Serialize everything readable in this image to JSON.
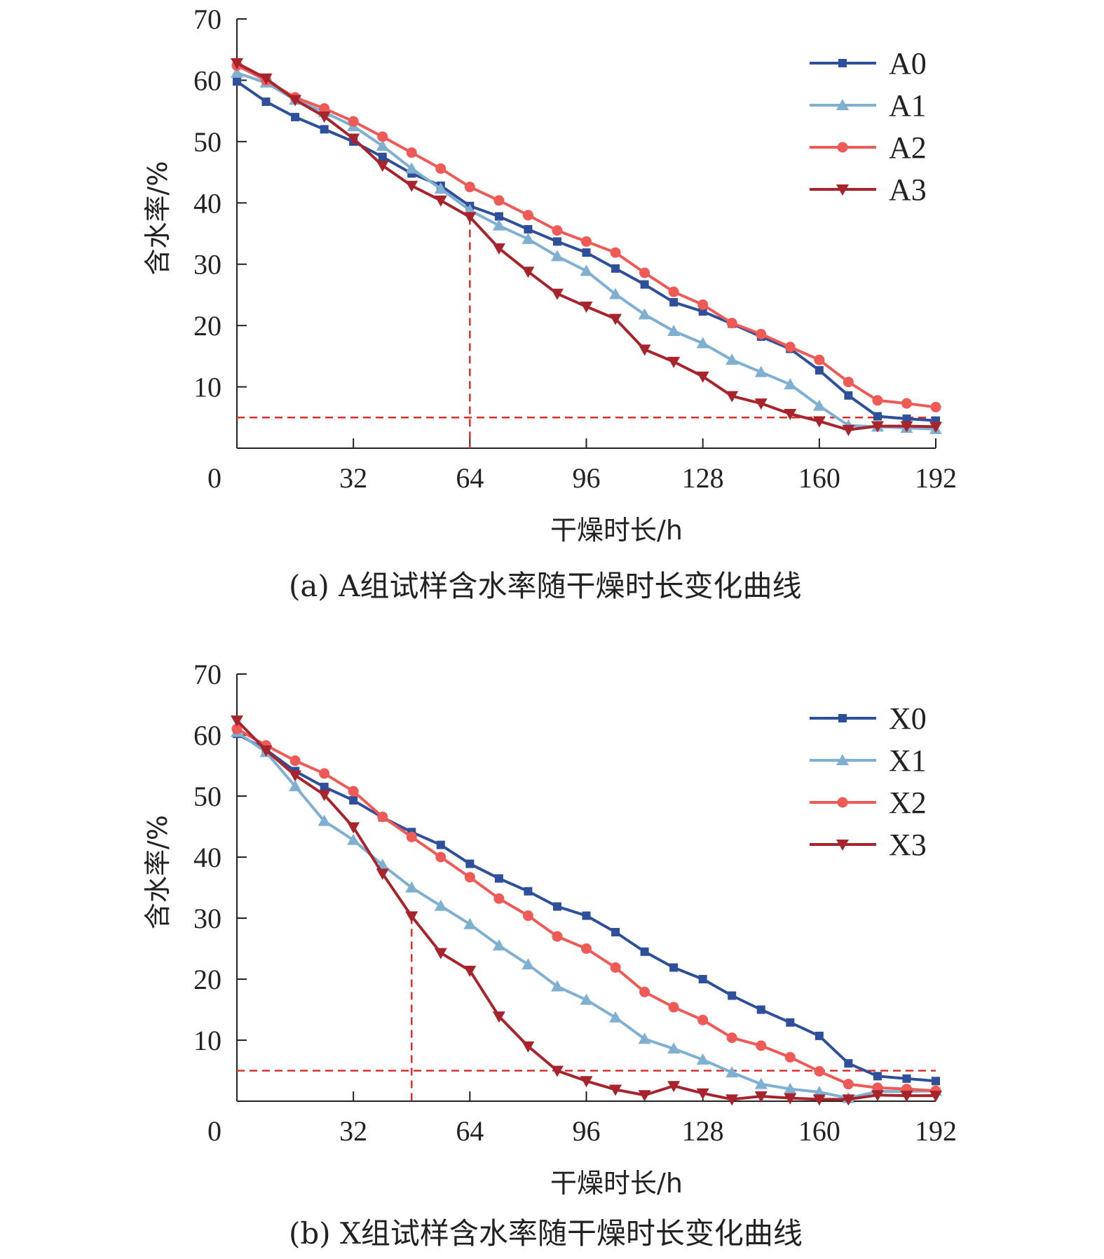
{
  "chart_data": [
    {
      "type": "line",
      "caption": "(a) A组试样含水率随干燥时长变化曲线",
      "xlabel": "干燥时长/h",
      "ylabel": "含水率/%",
      "xlim": [
        0,
        192
      ],
      "ylim": [
        0,
        70
      ],
      "xticks": [
        0,
        32,
        64,
        96,
        128,
        160,
        192
      ],
      "yticks": [
        10,
        20,
        30,
        40,
        50,
        60,
        70
      ],
      "legend_position": "top-right",
      "x": [
        0,
        8,
        16,
        24,
        32,
        40,
        48,
        56,
        64,
        72,
        80,
        88,
        96,
        104,
        112,
        120,
        128,
        136,
        144,
        152,
        160,
        168,
        176,
        184,
        192
      ],
      "series": [
        {
          "name": "A0",
          "color": "#2e4f9a",
          "marker": "square",
          "values": [
            59.8,
            56.5,
            54,
            52,
            50,
            47.5,
            44.8,
            42.8,
            39.5,
            37.8,
            35.7,
            33.7,
            31.9,
            29.3,
            26.7,
            23.8,
            22.3,
            20.3,
            18.2,
            16.2,
            12.7,
            8.6,
            5.2,
            4.8,
            4.5
          ]
        },
        {
          "name": "A1",
          "color": "#7fb0d2",
          "marker": "triangle-up",
          "values": [
            61.2,
            59.6,
            56.8,
            54.8,
            52.5,
            49.3,
            45.6,
            42.3,
            38.8,
            36.3,
            34.1,
            31.3,
            28.9,
            25.1,
            21.8,
            19.1,
            17.1,
            14.4,
            12.4,
            10.4,
            6.9,
            3.7,
            3.5,
            3.3,
            3.1
          ]
        },
        {
          "name": "A2",
          "color": "#ee5a56",
          "marker": "circle",
          "values": [
            62.4,
            60,
            57.2,
            55.4,
            53.3,
            50.8,
            48.2,
            45.6,
            42.6,
            40.4,
            38,
            35.5,
            33.7,
            31.9,
            28.6,
            25.5,
            23.4,
            20.4,
            18.6,
            16.5,
            14.4,
            10.8,
            7.8,
            7.3,
            6.7
          ]
        },
        {
          "name": "A3",
          "color": "#a7242c",
          "marker": "triangle-down",
          "values": [
            62.8,
            60.3,
            56.8,
            54.1,
            50.5,
            46.1,
            42.8,
            40.4,
            37.7,
            32.6,
            28.8,
            25.2,
            23.1,
            21.1,
            16.1,
            14.1,
            11.7,
            8.5,
            7.3,
            5.6,
            4.4,
            3,
            3.6,
            3.6,
            3.5
          ]
        }
      ],
      "reference_lines": [
        {
          "orientation": "horizontal",
          "value": 5,
          "color": "#d9302c"
        },
        {
          "orientation": "vertical",
          "value": 64,
          "color": "#d9302c"
        }
      ]
    },
    {
      "type": "line",
      "caption": "(b) X组试样含水率随干燥时长变化曲线",
      "xlabel": "干燥时长/h",
      "ylabel": "含水率/%",
      "xlim": [
        0,
        192
      ],
      "ylim": [
        0,
        70
      ],
      "xticks": [
        0,
        32,
        64,
        96,
        128,
        160,
        192
      ],
      "yticks": [
        10,
        20,
        30,
        40,
        50,
        60,
        70
      ],
      "legend_position": "top-right",
      "x": [
        0,
        8,
        16,
        24,
        32,
        40,
        48,
        56,
        64,
        72,
        80,
        88,
        96,
        104,
        112,
        120,
        128,
        136,
        144,
        152,
        160,
        168,
        176,
        184,
        192
      ],
      "series": [
        {
          "name": "X0",
          "color": "#2e4f9a",
          "marker": "square",
          "values": [
            60.2,
            57.6,
            54.1,
            51.5,
            49.3,
            46.5,
            44.1,
            42,
            38.9,
            36.5,
            34.4,
            31.9,
            30.4,
            27.7,
            24.5,
            21.9,
            20,
            17.3,
            15,
            12.9,
            10.7,
            6.2,
            4.1,
            3.7,
            3.3
          ]
        },
        {
          "name": "X1",
          "color": "#7fb0d2",
          "marker": "triangle-up",
          "values": [
            60.5,
            57.2,
            51.6,
            45.9,
            42.8,
            38.7,
            35,
            32,
            29,
            25.5,
            22.4,
            18.8,
            16.6,
            13.7,
            10.2,
            8.6,
            6.8,
            4.7,
            2.8,
            2,
            1.5,
            0.5,
            1.6,
            1.6,
            1.7
          ]
        },
        {
          "name": "X2",
          "color": "#ee5a56",
          "marker": "circle",
          "values": [
            61,
            58.3,
            55.8,
            53.7,
            50.8,
            46.6,
            43.3,
            40,
            36.7,
            33.2,
            30.4,
            27,
            25,
            21.9,
            17.9,
            15.4,
            13.3,
            10.4,
            9.1,
            7.2,
            4.9,
            2.8,
            2.2,
            2,
            1.7
          ]
        },
        {
          "name": "X3",
          "color": "#a7242c",
          "marker": "triangle-down",
          "values": [
            62.4,
            57.5,
            53.4,
            50.2,
            44.9,
            37.3,
            30.3,
            24.3,
            21.4,
            13.9,
            9,
            5,
            3.3,
            1.9,
            1,
            2.5,
            1.3,
            0.3,
            0.8,
            0.5,
            0.3,
            0.3,
            1,
            0.9,
            0.9
          ]
        }
      ],
      "reference_lines": [
        {
          "orientation": "horizontal",
          "value": 5,
          "color": "#d9302c"
        },
        {
          "orientation": "vertical",
          "value": 48,
          "color": "#d9302c"
        }
      ]
    }
  ]
}
